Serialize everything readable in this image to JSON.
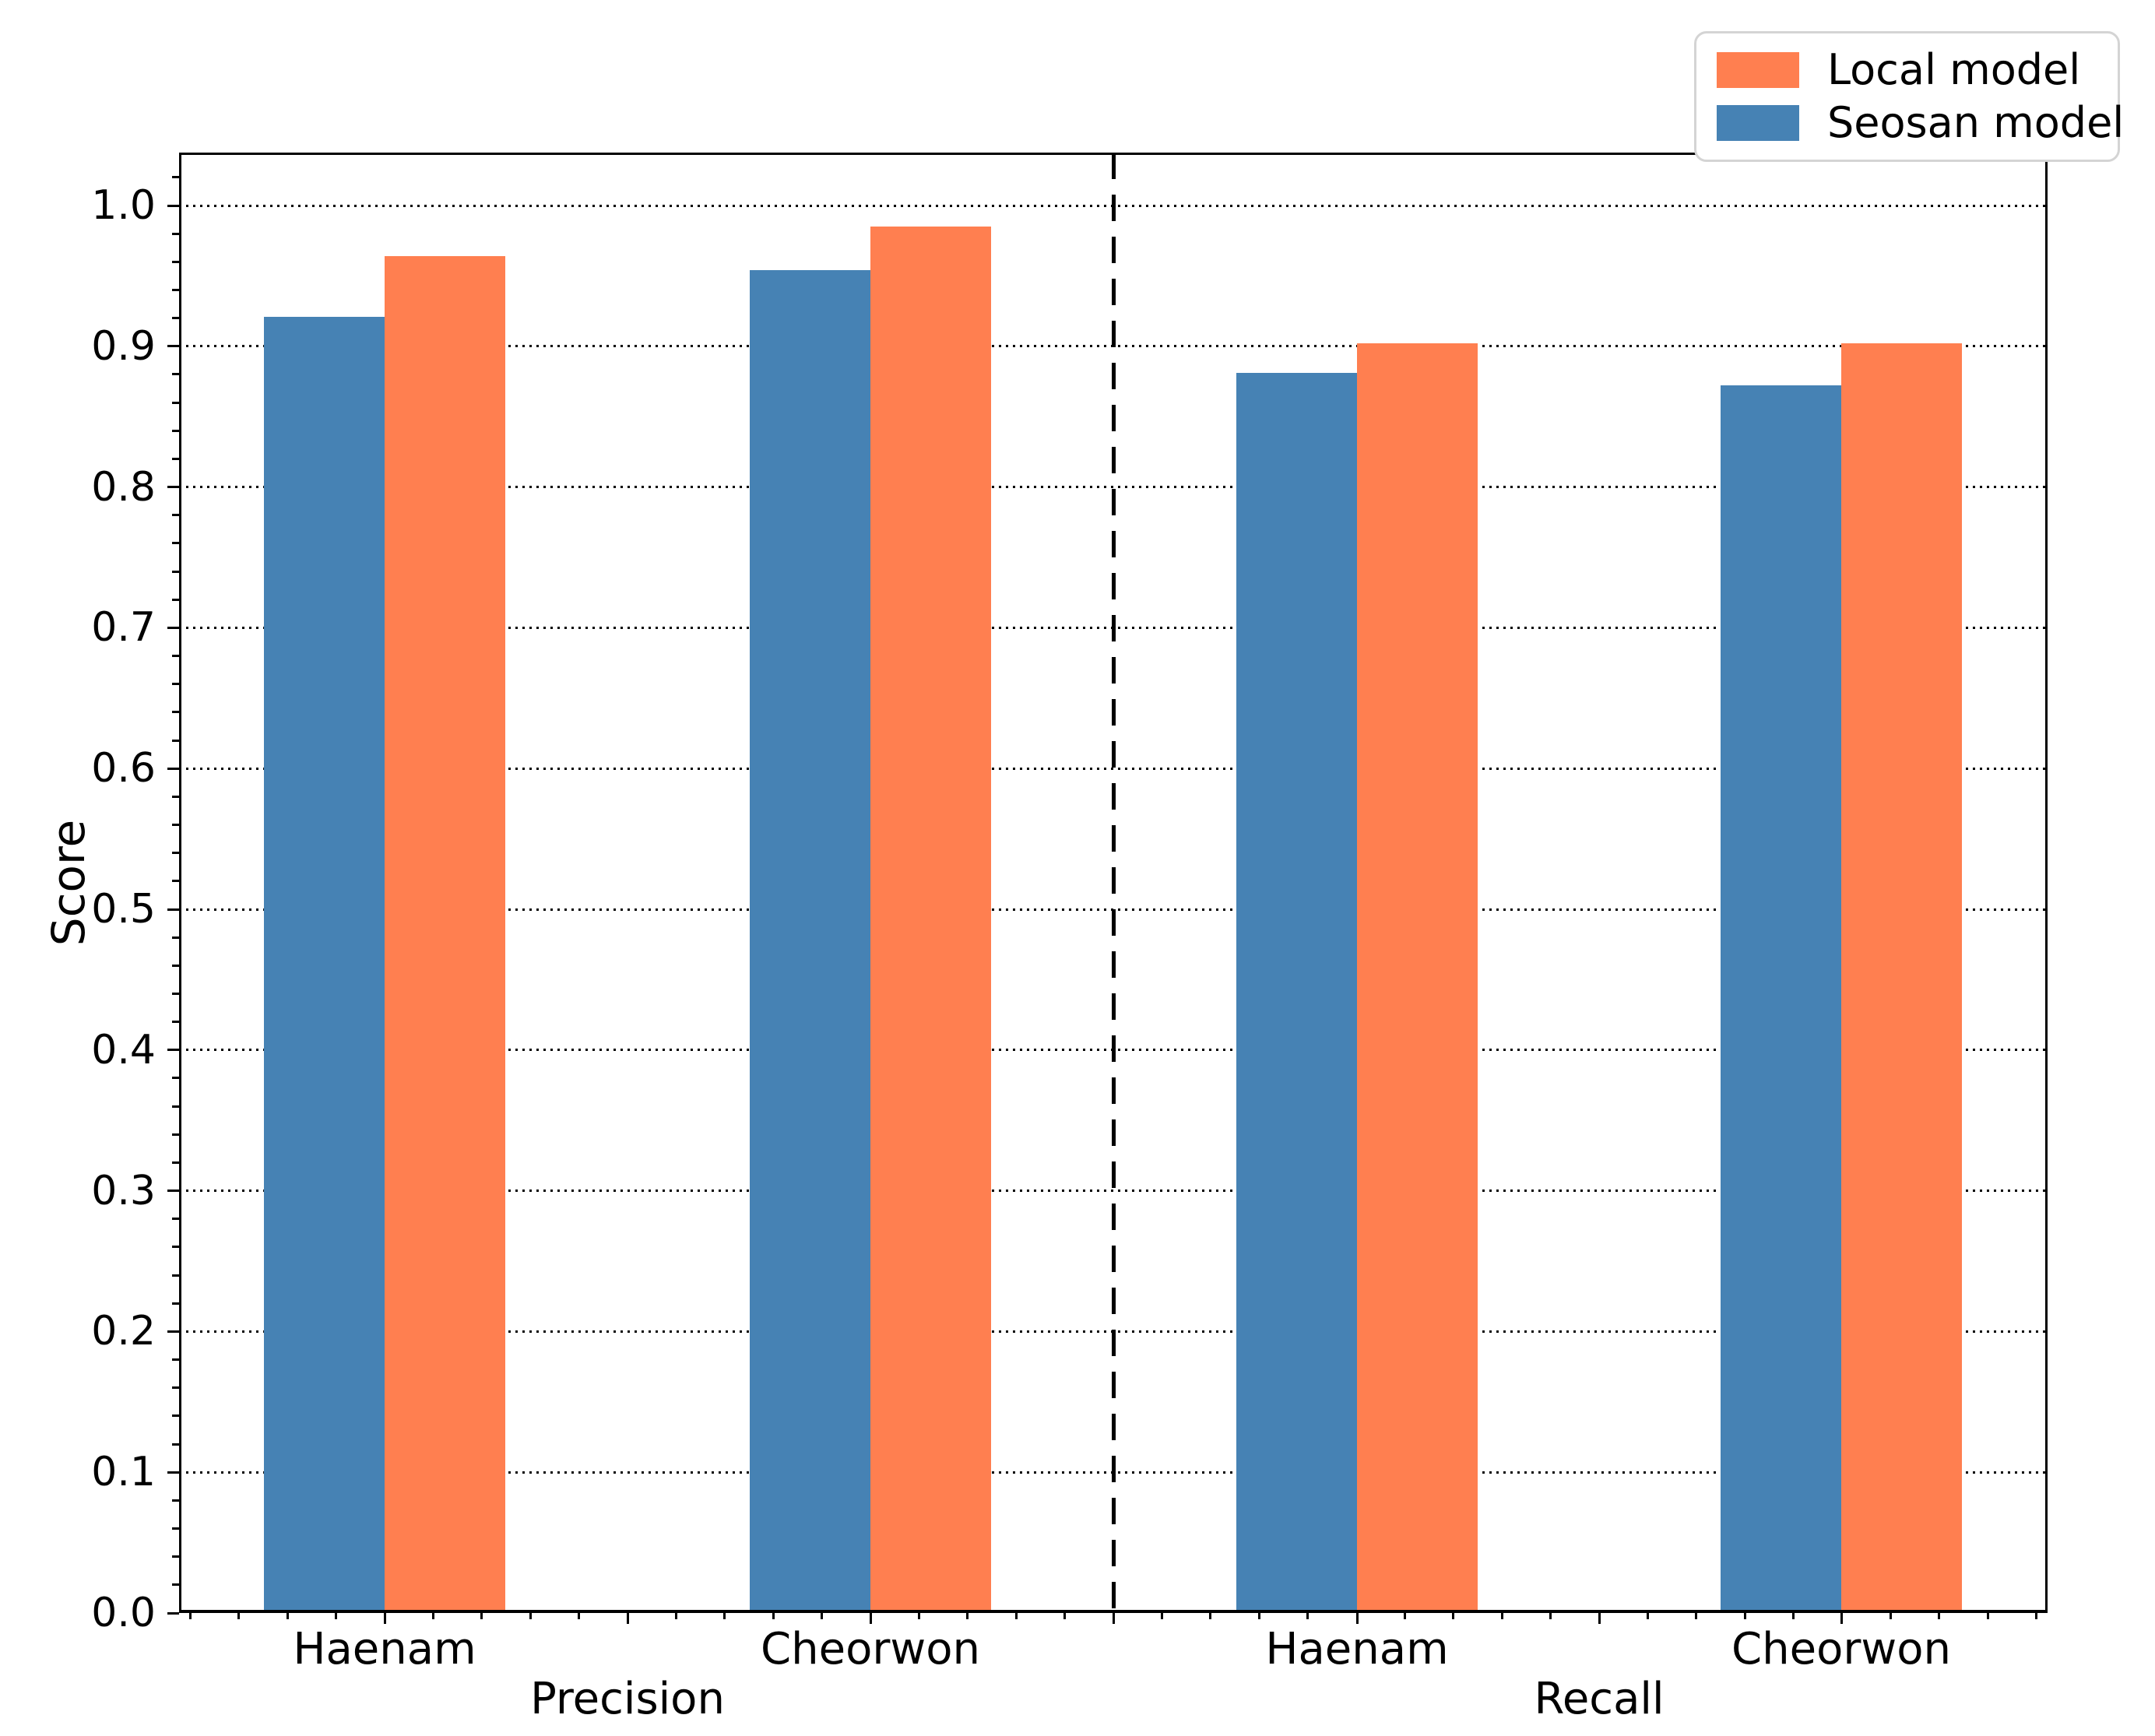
{
  "chart_data": {
    "type": "bar",
    "title": "",
    "ylabel": "Score",
    "ylim": [
      0.0,
      1.038
    ],
    "grid": "horizontal-dotted",
    "legend_position": "upper right",
    "ytick_values": [
      0.0,
      0.1,
      0.2,
      0.3,
      0.4,
      0.5,
      0.6,
      0.7,
      0.8,
      0.9,
      1.0
    ],
    "ytick_labels": [
      "0.0",
      "0.1",
      "0.2",
      "0.3",
      "0.4",
      "0.5",
      "0.6",
      "0.7",
      "0.8",
      "0.9",
      "1.0"
    ],
    "minor_ytick_step": 0.02,
    "sections": [
      {
        "label": "Precision",
        "categories": [
          "Haenam",
          "Cheorwon"
        ]
      },
      {
        "label": "Recall",
        "categories": [
          "Haenam",
          "Cheorwon"
        ]
      }
    ],
    "categories": [
      "Haenam",
      "Cheorwon",
      "Haenam",
      "Cheorwon"
    ],
    "series": [
      {
        "name": "Seosan model",
        "color": "#4682B4",
        "values": [
          0.921,
          0.954,
          0.881,
          0.872
        ]
      },
      {
        "name": "Local model",
        "color": "#FF7F50",
        "values": [
          0.964,
          0.985,
          0.902,
          0.902
        ]
      }
    ],
    "legend_entries": [
      {
        "label": "Local model",
        "color": "#FF7F50"
      },
      {
        "label": "Seosan model",
        "color": "#4682B4"
      }
    ],
    "divider": {
      "style": "dashed",
      "color": "#000000",
      "between": [
        "Precision",
        "Recall"
      ]
    },
    "colors": {
      "axis": "#000000",
      "grid": "#000000",
      "legend_border": "#d4d4d4",
      "background": "#ffffff"
    }
  }
}
